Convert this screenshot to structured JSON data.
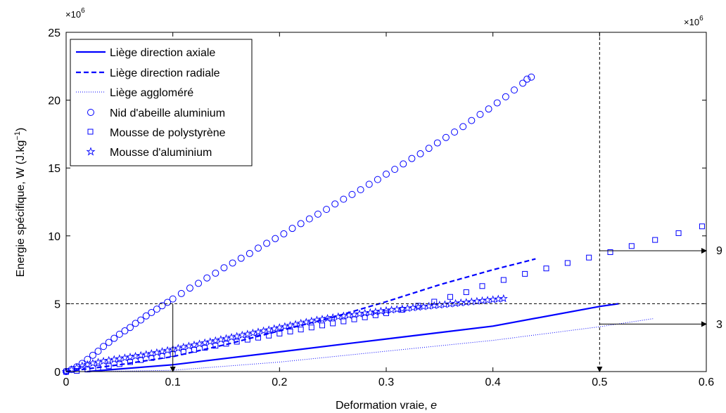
{
  "chart_data": {
    "type": "line",
    "xlabel": "Deformation vraie, ",
    "xlabel_italic": "e",
    "ylabel": "Energie spécifique, W (J.kg",
    "ylabel_sup": "−1",
    "ylabel_close": ")",
    "xlim": [
      0,
      0.6
    ],
    "ylim": [
      0,
      25000000
    ],
    "xticks": [
      0,
      0.1,
      0.2,
      0.3,
      0.4,
      0.5,
      0.6
    ],
    "xtick_labels": [
      "0",
      "0.1",
      "0.2",
      "0.3",
      "0.4",
      "0.5",
      "0.6"
    ],
    "yticks": [
      0,
      5000000,
      10000000,
      15000000,
      20000000,
      25000000
    ],
    "ytick_labels": [
      "0",
      "5",
      "10",
      "15",
      "20",
      "25"
    ],
    "exponent_label_left": "×10",
    "exponent_label_right": "×10",
    "exponent_power": "6",
    "grid": false,
    "legend_position": "top-left",
    "series": [
      {
        "name": "Liège direction axiale",
        "style": "solid",
        "marker": "none",
        "x": [
          0.02,
          0.1,
          0.2,
          0.3,
          0.4,
          0.5,
          0.518
        ],
        "y": [
          0,
          500000,
          1450000,
          2400000,
          3350000,
          4800000,
          5000000
        ]
      },
      {
        "name": "Liège direction radiale",
        "style": "dashed",
        "marker": "none",
        "x": [
          0,
          0.05,
          0.1,
          0.15,
          0.2,
          0.25,
          0.3,
          0.35,
          0.4,
          0.44
        ],
        "y": [
          0,
          500000,
          1100000,
          2000000,
          3000000,
          4000000,
          5150000,
          6400000,
          7500000,
          8300000
        ]
      },
      {
        "name": "Liège aggloméré",
        "style": "dotted",
        "marker": "none",
        "x": [
          0.03,
          0.1,
          0.2,
          0.3,
          0.4,
          0.5,
          0.55
        ],
        "y": [
          0,
          100000,
          700000,
          1500000,
          2300000,
          3300000,
          3900000
        ]
      },
      {
        "name": "Nid d'abeille aluminium",
        "style": "none",
        "marker": "circle",
        "x": [
          0,
          0.005,
          0.01,
          0.015,
          0.02,
          0.025,
          0.03,
          0.035,
          0.04,
          0.045,
          0.05,
          0.055,
          0.06,
          0.065,
          0.07,
          0.075,
          0.08,
          0.085,
          0.09,
          0.095,
          0.1,
          0.108,
          0.116,
          0.124,
          0.132,
          0.14,
          0.148,
          0.156,
          0.164,
          0.172,
          0.18,
          0.188,
          0.196,
          0.204,
          0.212,
          0.22,
          0.228,
          0.236,
          0.244,
          0.252,
          0.26,
          0.268,
          0.276,
          0.284,
          0.292,
          0.3,
          0.308,
          0.316,
          0.324,
          0.332,
          0.34,
          0.348,
          0.356,
          0.364,
          0.372,
          0.38,
          0.388,
          0.396,
          0.404,
          0.412,
          0.42,
          0.428,
          0.432,
          0.436
        ],
        "y": [
          0,
          150000,
          350000,
          600000,
          900000,
          1200000,
          1500000,
          1850000,
          2150000,
          2450000,
          2750000,
          3000000,
          3250000,
          3550000,
          3800000,
          4100000,
          4350000,
          4600000,
          4850000,
          5100000,
          5350000,
          5750000,
          6150000,
          6500000,
          6900000,
          7250000,
          7650000,
          8000000,
          8350000,
          8700000,
          9100000,
          9450000,
          9800000,
          10150000,
          10550000,
          10900000,
          11250000,
          11600000,
          11950000,
          12350000,
          12700000,
          13050000,
          13400000,
          13800000,
          14150000,
          14550000,
          14900000,
          15300000,
          15700000,
          16050000,
          16450000,
          16850000,
          17250000,
          17650000,
          18050000,
          18500000,
          18950000,
          19350000,
          19800000,
          20250000,
          20750000,
          21250000,
          21550000,
          21700000
        ]
      },
      {
        "name": "Mousse de polystyrène",
        "style": "none",
        "marker": "square",
        "x": [
          0,
          0.01,
          0.02,
          0.03,
          0.04,
          0.05,
          0.06,
          0.07,
          0.08,
          0.09,
          0.1,
          0.11,
          0.12,
          0.13,
          0.14,
          0.15,
          0.16,
          0.17,
          0.18,
          0.19,
          0.2,
          0.21,
          0.22,
          0.23,
          0.24,
          0.25,
          0.26,
          0.27,
          0.28,
          0.29,
          0.3,
          0.315,
          0.33,
          0.345,
          0.36,
          0.375,
          0.39,
          0.41,
          0.43,
          0.45,
          0.47,
          0.49,
          0.51,
          0.53,
          0.552,
          0.574,
          0.596
        ],
        "y": [
          0,
          50000,
          150000,
          250000,
          400000,
          550000,
          700000,
          850000,
          1000000,
          1150000,
          1300000,
          1450000,
          1600000,
          1750000,
          1900000,
          2050000,
          2200000,
          2350000,
          2500000,
          2650000,
          2800000,
          2950000,
          3100000,
          3250000,
          3400000,
          3550000,
          3700000,
          3850000,
          4000000,
          4150000,
          4300000,
          4550000,
          4850000,
          5150000,
          5500000,
          5850000,
          6300000,
          6750000,
          7200000,
          7600000,
          8000000,
          8400000,
          8800000,
          9250000,
          9700000,
          10200000,
          10700000
        ]
      },
      {
        "name": "Mousse d'aluminium",
        "style": "none",
        "marker": "star",
        "x": [
          0,
          0.005,
          0.01,
          0.015,
          0.02,
          0.025,
          0.03,
          0.035,
          0.04,
          0.045,
          0.05,
          0.055,
          0.06,
          0.065,
          0.07,
          0.075,
          0.08,
          0.085,
          0.09,
          0.095,
          0.1,
          0.105,
          0.11,
          0.115,
          0.12,
          0.125,
          0.13,
          0.135,
          0.14,
          0.145,
          0.15,
          0.155,
          0.16,
          0.165,
          0.17,
          0.175,
          0.18,
          0.185,
          0.19,
          0.195,
          0.2,
          0.205,
          0.21,
          0.215,
          0.22,
          0.225,
          0.23,
          0.235,
          0.24,
          0.245,
          0.25,
          0.255,
          0.26,
          0.265,
          0.27,
          0.275,
          0.28,
          0.285,
          0.29,
          0.295,
          0.3,
          0.305,
          0.31,
          0.315,
          0.32,
          0.325,
          0.33,
          0.335,
          0.34,
          0.345,
          0.35,
          0.355,
          0.36,
          0.365,
          0.37,
          0.375,
          0.38,
          0.385,
          0.39,
          0.395,
          0.4,
          0.405,
          0.41
        ],
        "y": [
          0,
          150000,
          300000,
          420000,
          520000,
          610000,
          690000,
          760000,
          830000,
          890000,
          950000,
          1010000,
          1070000,
          1130000,
          1190000,
          1260000,
          1330000,
          1400000,
          1480000,
          1560000,
          1640000,
          1720000,
          1800000,
          1880000,
          1960000,
          2040000,
          2120000,
          2200000,
          2280000,
          2360000,
          2440000,
          2520000,
          2600000,
          2680000,
          2760000,
          2840000,
          2920000,
          3000000,
          3080000,
          3160000,
          3240000,
          3320000,
          3400000,
          3480000,
          3560000,
          3640000,
          3720000,
          3800000,
          3860000,
          3920000,
          3980000,
          4040000,
          4100000,
          4150000,
          4200000,
          4250000,
          4300000,
          4350000,
          4400000,
          4450000,
          4500000,
          4540000,
          4580000,
          4620000,
          4660000,
          4700000,
          4740000,
          4780000,
          4820000,
          4860000,
          4900000,
          4940000,
          4980000,
          5020000,
          5060000,
          5100000,
          5140000,
          5180000,
          5220000,
          5260000,
          5300000,
          5340000,
          5380000
        ]
      }
    ],
    "annotations": {
      "hline_y": 5000000,
      "vline_left_x": 0.1,
      "vline_right_x": 0.5,
      "arrow_upper_y": 8900000,
      "arrow_lower_y": 3500000,
      "arrow_upper_label": "9",
      "arrow_lower_label": "3"
    },
    "color": "#0000ff"
  }
}
